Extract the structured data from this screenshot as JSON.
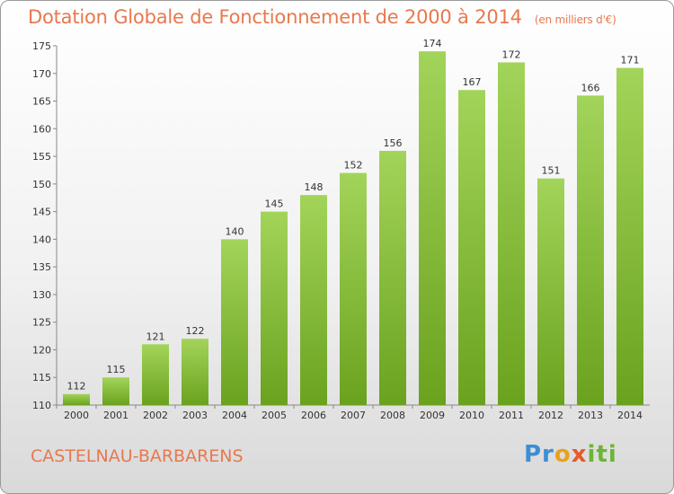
{
  "header": {
    "title": "Dotation Globale de Fonctionnement de 2000 à 2014",
    "unit": "(en milliers d'€)"
  },
  "footer": {
    "commune": "CASTELNAU-BARBARENS",
    "logo": "Proxiti"
  },
  "colors": {
    "title": "#e8784e",
    "bar_light": "#a3d45a",
    "bar_dark": "#6aa21e"
  },
  "chart_data": {
    "type": "bar",
    "categories": [
      "2000",
      "2001",
      "2002",
      "2003",
      "2004",
      "2005",
      "2006",
      "2007",
      "2008",
      "2009",
      "2010",
      "2011",
      "2012",
      "2013",
      "2014"
    ],
    "values": [
      112,
      115,
      121,
      122,
      140,
      145,
      148,
      152,
      156,
      174,
      167,
      172,
      151,
      166,
      171
    ],
    "ylim": [
      110,
      175
    ],
    "yticks": [
      110,
      115,
      120,
      125,
      130,
      135,
      140,
      145,
      150,
      155,
      160,
      165,
      170,
      175
    ],
    "grid": false,
    "data_labels": true
  }
}
